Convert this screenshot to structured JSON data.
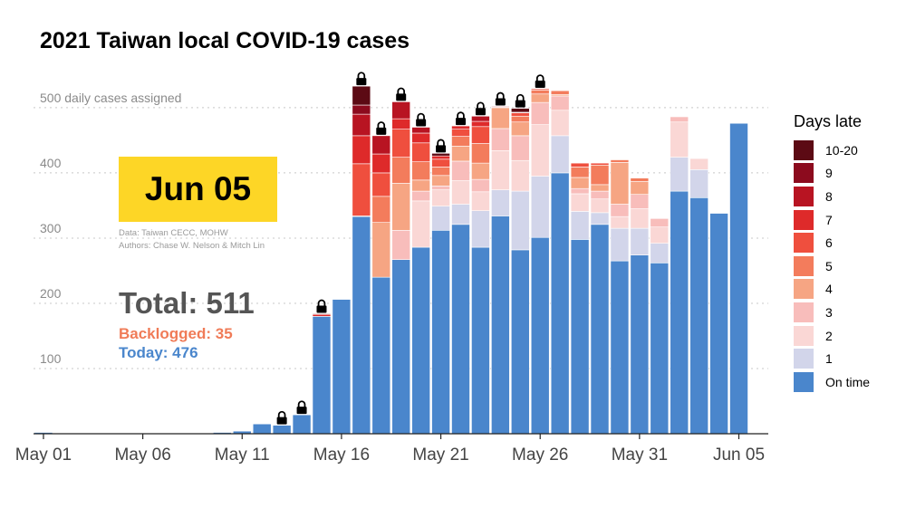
{
  "title": "2021 Taiwan local COVID-19 cases",
  "date_label": "Jun 05",
  "credits": {
    "data": "Data: Taiwan CECC, MOHW",
    "authors": "Authors: Chase W. Nelson & Mitch Lin"
  },
  "summary": {
    "total": "Total: 511",
    "backlogged": "Backlogged: 35",
    "today": "Today: 476"
  },
  "colors": {
    "on_time": "#4A86CC",
    "lock": "#000000",
    "text_total": "#555555",
    "text_backlogged": "#F07B57",
    "text_today": "#4A86CC",
    "date_box": "#FDD626"
  },
  "chart_data": {
    "type": "bar",
    "stacked": true,
    "title": "2021 Taiwan local COVID-19 cases",
    "ylabel": "500 daily cases assigned",
    "ylim": [
      0,
      550
    ],
    "yticks": [
      100,
      200,
      300,
      400,
      500
    ],
    "ytick_labels": [
      "100",
      "200",
      "300",
      "400",
      "500"
    ],
    "x_tick_labels": [
      {
        "index": 0,
        "label": "May 01"
      },
      {
        "index": 5,
        "label": "May 06"
      },
      {
        "index": 10,
        "label": "May 11"
      },
      {
        "index": 15,
        "label": "May 16"
      },
      {
        "index": 20,
        "label": "May 21"
      },
      {
        "index": 25,
        "label": "May 26"
      },
      {
        "index": 30,
        "label": "May 31"
      },
      {
        "index": 35,
        "label": "Jun 05"
      }
    ],
    "legend_title": "Days late",
    "series": [
      {
        "name": "10-20",
        "color": "#5C0A14"
      },
      {
        "name": "9",
        "color": "#8C0B1E"
      },
      {
        "name": "8",
        "color": "#B81422"
      },
      {
        "name": "7",
        "color": "#DE2A2A"
      },
      {
        "name": "6",
        "color": "#EF4F3E"
      },
      {
        "name": "5",
        "color": "#F37C5C"
      },
      {
        "name": "4",
        "color": "#F6A583"
      },
      {
        "name": "3",
        "color": "#F8BDBB"
      },
      {
        "name": "2",
        "color": "#FAD7D5"
      },
      {
        "name": "1",
        "color": "#D2D5EA"
      },
      {
        "name": "On time",
        "color": "#4A86CC"
      }
    ],
    "stack_order": [
      "On time",
      "1",
      "2",
      "3",
      "4",
      "5",
      "6",
      "7",
      "8",
      "9",
      "10-20"
    ],
    "dates": [
      "May 01",
      "May 02",
      "May 03",
      "May 04",
      "May 05",
      "May 06",
      "May 07",
      "May 08",
      "May 09",
      "May 10",
      "May 11",
      "May 12",
      "May 13",
      "May 14",
      "May 15",
      "May 16",
      "May 17",
      "May 18",
      "May 19",
      "May 20",
      "May 21",
      "May 22",
      "May 23",
      "May 24",
      "May 25",
      "May 26",
      "May 27",
      "May 28",
      "May 29",
      "May 30",
      "May 31",
      "Jun 01",
      "Jun 02",
      "Jun 03",
      "Jun 04",
      "Jun 05"
    ],
    "days": [
      {
        "date": "May 01",
        "values": {
          "On time": 2
        }
      },
      {
        "date": "May 02",
        "values": {
          "On time": 0
        }
      },
      {
        "date": "May 03",
        "values": {
          "On time": 0
        }
      },
      {
        "date": "May 04",
        "values": {
          "On time": 0
        }
      },
      {
        "date": "May 05",
        "values": {
          "On time": 0
        }
      },
      {
        "date": "May 06",
        "values": {
          "On time": 0
        }
      },
      {
        "date": "May 07",
        "values": {
          "On time": 0
        }
      },
      {
        "date": "May 08",
        "values": {
          "On time": 0
        }
      },
      {
        "date": "May 09",
        "values": {
          "On time": 0
        }
      },
      {
        "date": "May 10",
        "values": {
          "On time": 2
        }
      },
      {
        "date": "May 11",
        "values": {
          "On time": 4
        }
      },
      {
        "date": "May 12",
        "values": {
          "On time": 15
        }
      },
      {
        "date": "May 13",
        "values": {
          "On time": 13
        },
        "locked": true
      },
      {
        "date": "May 14",
        "values": {
          "On time": 29
        },
        "locked": true
      },
      {
        "date": "May 15",
        "values": {
          "On time": 180,
          "7": 3,
          "10-20": 1
        },
        "locked": true
      },
      {
        "date": "May 16",
        "values": {
          "On time": 206
        }
      },
      {
        "date": "May 17",
        "values": {
          "On time": 333,
          "5": 1,
          "6": 80,
          "7": 43,
          "8": 33,
          "9": 14,
          "10-20": 29
        },
        "locked": true
      },
      {
        "date": "May 18",
        "values": {
          "On time": 240,
          "4": 84,
          "5": 40,
          "6": 36,
          "7": 29,
          "8": 28
        },
        "locked": true
      },
      {
        "date": "May 19",
        "values": {
          "On time": 267,
          "3": 45,
          "4": 72,
          "5": 40,
          "6": 43,
          "7": 16,
          "8": 26
        },
        "locked": true
      },
      {
        "date": "May 20",
        "values": {
          "On time": 286,
          "2": 71,
          "3": 15,
          "4": 17,
          "5": 28,
          "6": 29,
          "7": 15,
          "8": 9
        },
        "locked": true
      },
      {
        "date": "May 21",
        "values": {
          "On time": 312,
          "1": 37,
          "2": 25,
          "3": 6,
          "4": 16,
          "5": 13,
          "6": 12,
          "7": 5,
          "10-20": 4
        },
        "locked": true
      },
      {
        "date": "May 22",
        "values": {
          "On time": 321,
          "1": 31,
          "2": 36,
          "3": 30,
          "4": 23,
          "5": 15,
          "6": 11,
          "7": 5
        },
        "locked": true
      },
      {
        "date": "May 23",
        "values": {
          "On time": 286,
          "1": 56,
          "2": 29,
          "3": 19,
          "4": 25,
          "5": 30,
          "6": 26,
          "7": 8,
          "8": 8
        },
        "locked": true
      },
      {
        "date": "May 24",
        "values": {
          "On time": 334,
          "1": 40,
          "2": 60,
          "3": 34,
          "4": 32,
          "7": 1,
          "8": 1
        },
        "locked": true
      },
      {
        "date": "May 25",
        "values": {
          "On time": 282,
          "1": 90,
          "2": 47,
          "3": 38,
          "4": 21,
          "5": 9,
          "6": 5,
          "7": 1,
          "10-20": 6
        },
        "locked": true
      },
      {
        "date": "May 26",
        "values": {
          "On time": 301,
          "1": 94,
          "2": 79,
          "3": 34,
          "4": 13,
          "5": 6,
          "6": 2
        },
        "locked": true
      },
      {
        "date": "May 27",
        "values": {
          "On time": 400,
          "1": 57,
          "2": 39,
          "3": 22,
          "4": 2,
          "5": 6
        }
      },
      {
        "date": "May 28",
        "values": {
          "On time": 298,
          "1": 43,
          "2": 27,
          "3": 8,
          "4": 17,
          "5": 16,
          "6": 6
        }
      },
      {
        "date": "May 29",
        "values": {
          "On time": 321,
          "1": 18,
          "2": 21,
          "3": 12,
          "4": 10,
          "5": 30,
          "6": 3
        }
      },
      {
        "date": "May 30",
        "values": {
          "On time": 265,
          "1": 50,
          "2": 18,
          "3": 19,
          "4": 64,
          "5": 4
        }
      },
      {
        "date": "May 31",
        "values": {
          "On time": 274,
          "1": 41,
          "2": 30,
          "3": 22,
          "4": 20,
          "5": 5
        }
      },
      {
        "date": "Jun 01",
        "values": {
          "On time": 262,
          "1": 30,
          "2": 25,
          "3": 13
        }
      },
      {
        "date": "Jun 02",
        "values": {
          "On time": 372,
          "1": 52,
          "2": 54,
          "3": 8
        }
      },
      {
        "date": "Jun 03",
        "values": {
          "On time": 362,
          "1": 43,
          "2": 17
        }
      },
      {
        "date": "Jun 04",
        "values": {
          "On time": 338
        }
      },
      {
        "date": "Jun 05",
        "values": {
          "On time": 476
        }
      }
    ]
  }
}
